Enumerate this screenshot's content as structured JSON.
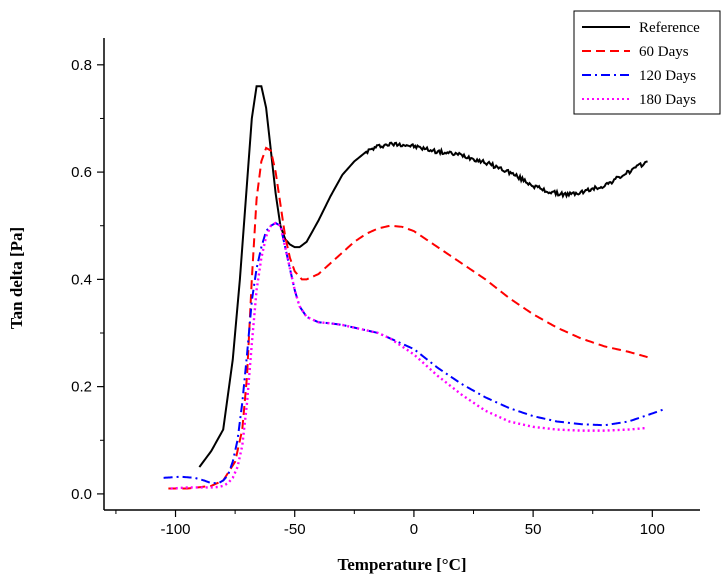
{
  "chart_data": {
    "type": "line",
    "title": "",
    "xlabel": "Temperature [°C]",
    "ylabel": "Tan delta [Pa]",
    "xlim": [
      -130,
      120
    ],
    "ylim": [
      -0.03,
      0.85
    ],
    "xticks": [
      -100,
      -50,
      0,
      50,
      100
    ],
    "yticks": [
      0.0,
      0.2,
      0.4,
      0.6,
      0.8
    ],
    "xtick_labels": [
      "-100",
      "-50",
      "0",
      "50",
      "100"
    ],
    "ytick_labels": [
      "0.0",
      "0.2",
      "0.4",
      "0.6",
      "0.8"
    ],
    "grid": false,
    "legend_position": "top-right",
    "series": [
      {
        "name": "Reference",
        "color": "#000000",
        "dash": "solid",
        "x": [
          -90,
          -85,
          -80,
          -76,
          -73,
          -70,
          -68,
          -66,
          -64,
          -62,
          -60,
          -58,
          -56,
          -54,
          -52,
          -50,
          -48,
          -45,
          -40,
          -35,
          -30,
          -25,
          -20,
          -15,
          -10,
          -5,
          0,
          10,
          20,
          30,
          40,
          50,
          55,
          60,
          65,
          70,
          80,
          90,
          98
        ],
        "y": [
          0.05,
          0.08,
          0.12,
          0.25,
          0.4,
          0.58,
          0.7,
          0.76,
          0.76,
          0.72,
          0.64,
          0.56,
          0.5,
          0.475,
          0.465,
          0.46,
          0.46,
          0.47,
          0.51,
          0.555,
          0.595,
          0.62,
          0.638,
          0.648,
          0.652,
          0.652,
          0.648,
          0.638,
          0.632,
          0.618,
          0.6,
          0.575,
          0.565,
          0.56,
          0.558,
          0.562,
          0.575,
          0.6,
          0.62
        ]
      },
      {
        "name": "60 Days",
        "color": "#ff0000",
        "dash": "dashed",
        "x": [
          -103,
          -95,
          -85,
          -80,
          -75,
          -72,
          -70,
          -68,
          -66,
          -64,
          -62,
          -60,
          -58,
          -56,
          -54,
          -52,
          -50,
          -47,
          -45,
          -40,
          -35,
          -30,
          -25,
          -20,
          -15,
          -10,
          -5,
          0,
          10,
          20,
          30,
          40,
          50,
          60,
          70,
          80,
          90,
          98
        ],
        "y": [
          0.01,
          0.01,
          0.015,
          0.025,
          0.06,
          0.12,
          0.22,
          0.4,
          0.55,
          0.62,
          0.645,
          0.64,
          0.6,
          0.54,
          0.48,
          0.44,
          0.415,
          0.4,
          0.4,
          0.41,
          0.43,
          0.45,
          0.47,
          0.485,
          0.495,
          0.5,
          0.498,
          0.49,
          0.46,
          0.43,
          0.4,
          0.365,
          0.335,
          0.31,
          0.29,
          0.275,
          0.265,
          0.255
        ]
      },
      {
        "name": "120 Days",
        "color": "#0000ff",
        "dash": "dashdot",
        "x": [
          -105,
          -98,
          -92,
          -88,
          -85,
          -82,
          -80,
          -78,
          -76,
          -74,
          -72,
          -70,
          -68,
          -66,
          -64,
          -62,
          -60,
          -58,
          -56,
          -54,
          -52,
          -50,
          -48,
          -45,
          -40,
          -35,
          -30,
          -25,
          -20,
          -15,
          -10,
          -5,
          0,
          10,
          20,
          30,
          40,
          50,
          60,
          70,
          80,
          90,
          100,
          105
        ],
        "y": [
          0.03,
          0.032,
          0.03,
          0.025,
          0.02,
          0.02,
          0.025,
          0.035,
          0.06,
          0.1,
          0.17,
          0.26,
          0.36,
          0.42,
          0.46,
          0.49,
          0.5,
          0.505,
          0.5,
          0.46,
          0.42,
          0.38,
          0.35,
          0.33,
          0.32,
          0.318,
          0.315,
          0.31,
          0.305,
          0.3,
          0.29,
          0.28,
          0.27,
          0.235,
          0.205,
          0.18,
          0.16,
          0.145,
          0.135,
          0.13,
          0.128,
          0.135,
          0.15,
          0.158
        ]
      },
      {
        "name": "180 Days",
        "color": "#ff00ff",
        "dash": "dotted",
        "x": [
          -102,
          -95,
          -88,
          -85,
          -82,
          -80,
          -78,
          -76,
          -74,
          -72,
          -70,
          -68,
          -66,
          -64,
          -62,
          -60,
          -58,
          -56,
          -54,
          -52,
          -50,
          -48,
          -45,
          -40,
          -35,
          -30,
          -25,
          -20,
          -15,
          -10,
          -5,
          0,
          10,
          20,
          30,
          40,
          50,
          60,
          70,
          80,
          90,
          98
        ],
        "y": [
          0.01,
          0.012,
          0.012,
          0.012,
          0.013,
          0.015,
          0.02,
          0.03,
          0.05,
          0.09,
          0.17,
          0.28,
          0.38,
          0.44,
          0.48,
          0.5,
          0.505,
          0.5,
          0.46,
          0.42,
          0.38,
          0.35,
          0.33,
          0.32,
          0.318,
          0.315,
          0.31,
          0.305,
          0.3,
          0.29,
          0.275,
          0.26,
          0.22,
          0.185,
          0.155,
          0.135,
          0.125,
          0.12,
          0.118,
          0.118,
          0.12,
          0.123
        ]
      }
    ]
  }
}
